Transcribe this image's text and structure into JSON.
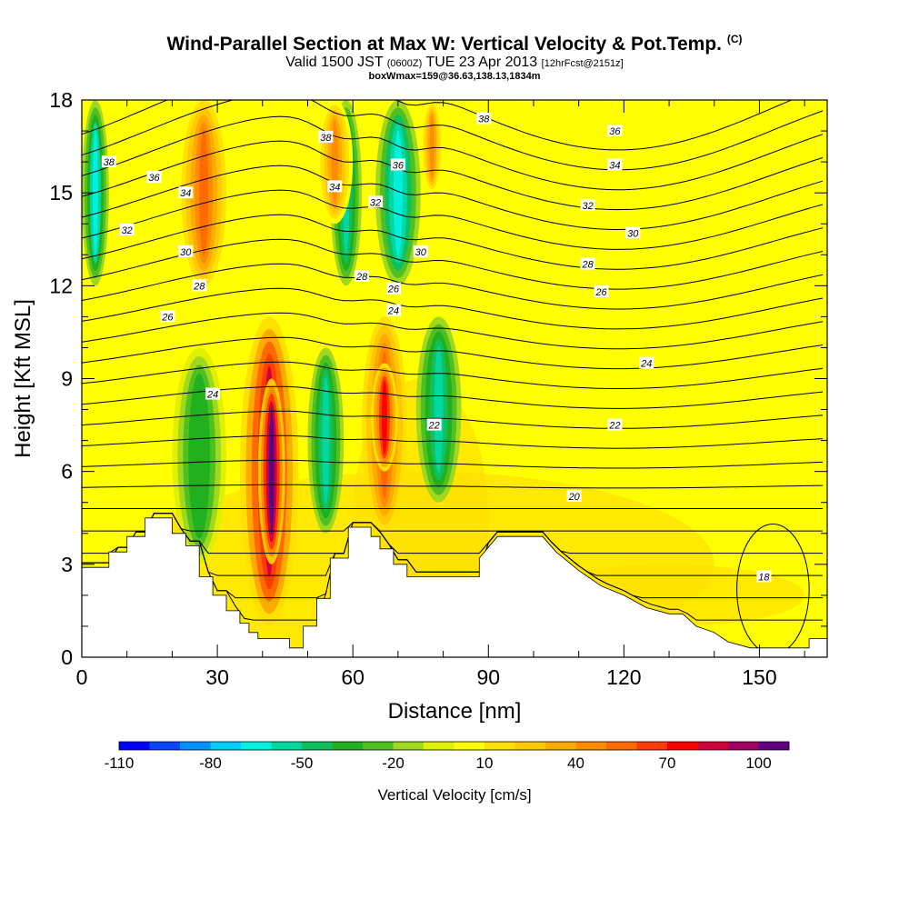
{
  "header": {
    "title": "Wind-Parallel Section at Max W: Vertical Velocity & Pot.Temp.",
    "title_mark": "(C)",
    "valid_prefix": "Valid 1500 JST",
    "valid_utc": "(0600Z)",
    "valid_date": "TUE 23 Apr 2013",
    "forecast": "[12hrFcst@2151z]",
    "box_info": "boxWmax=159@36.63,138.13,1834m"
  },
  "chart_data": {
    "type": "heatmap",
    "xlabel": "Distance [nm]",
    "ylabel": "Height [Kft MSL]",
    "xlim": [
      0,
      165
    ],
    "ylim": [
      0,
      18
    ],
    "xticks": [
      0,
      30,
      60,
      90,
      120,
      150
    ],
    "yticks": [
      0,
      3,
      6,
      9,
      12,
      15,
      18
    ],
    "colorbar": {
      "title": "Vertical Velocity [cm/s]",
      "tick_labels": [
        "-110",
        "-80",
        "-50",
        "-20",
        "10",
        "40",
        "70",
        "100"
      ],
      "levels": [
        -110,
        -100,
        -90,
        -80,
        -70,
        -60,
        -50,
        -40,
        -30,
        -20,
        -10,
        0,
        10,
        20,
        30,
        40,
        50,
        60,
        70,
        80,
        90,
        100
      ],
      "colors": [
        "#0000ff",
        "#0a46ff",
        "#0090ff",
        "#00ccff",
        "#00f0e0",
        "#00d8a0",
        "#10c060",
        "#20b020",
        "#50c020",
        "#a0d820",
        "#e0f000",
        "#ffff00",
        "#ffe000",
        "#ffc800",
        "#ffaa00",
        "#ff8c00",
        "#ff6a00",
        "#ff3c00",
        "#ff0000",
        "#d0003c",
        "#a00060",
        "#600080"
      ]
    },
    "terrain": [
      [
        0,
        2.9
      ],
      [
        6,
        2.9
      ],
      [
        6,
        3.4
      ],
      [
        10,
        3.4
      ],
      [
        10,
        3.9
      ],
      [
        14,
        3.9
      ],
      [
        14,
        4.5
      ],
      [
        20,
        4.5
      ],
      [
        20,
        4.0
      ],
      [
        23,
        4.0
      ],
      [
        23,
        3.6
      ],
      [
        26,
        3.6
      ],
      [
        26,
        2.6
      ],
      [
        29,
        2.6
      ],
      [
        29,
        2.0
      ],
      [
        32,
        2.0
      ],
      [
        32,
        1.5
      ],
      [
        35,
        1.5
      ],
      [
        35,
        1.1
      ],
      [
        37,
        1.1
      ],
      [
        37,
        0.8
      ],
      [
        39,
        0.8
      ],
      [
        39,
        0.6
      ],
      [
        46,
        0.6
      ],
      [
        46,
        0.3
      ],
      [
        49,
        0.3
      ],
      [
        49,
        1.0
      ],
      [
        52,
        1.0
      ],
      [
        52,
        1.9
      ],
      [
        55,
        1.9
      ],
      [
        55,
        3.2
      ],
      [
        59,
        3.2
      ],
      [
        59,
        4.2
      ],
      [
        64,
        4.2
      ],
      [
        64,
        3.9
      ],
      [
        66,
        3.9
      ],
      [
        66,
        3.5
      ],
      [
        69,
        3.5
      ],
      [
        69,
        3.0
      ],
      [
        72,
        3.0
      ],
      [
        72,
        2.6
      ],
      [
        80,
        2.6
      ],
      [
        80,
        2.6
      ],
      [
        88,
        2.6
      ],
      [
        88,
        3.2
      ],
      [
        92,
        3.9
      ],
      [
        102,
        3.9
      ],
      [
        105,
        3.4
      ],
      [
        110,
        2.8
      ],
      [
        115,
        2.3
      ],
      [
        120,
        2.0
      ],
      [
        125,
        1.6
      ],
      [
        130,
        1.4
      ],
      [
        133,
        1.4
      ],
      [
        136,
        1.0
      ],
      [
        140,
        0.8
      ],
      [
        143,
        0.5
      ],
      [
        148,
        0.3
      ],
      [
        161,
        0.3
      ],
      [
        161,
        0.6
      ],
      [
        165,
        0.6
      ]
    ],
    "vertical_velocity_cells": [
      {
        "x": [
          35,
          48
        ],
        "y": [
          1,
          11
        ],
        "w": 85
      },
      {
        "x": [
          39,
          45
        ],
        "y": [
          3,
          9
        ],
        "w": 100
      },
      {
        "x": [
          62,
          72
        ],
        "y": [
          4,
          11
        ],
        "w": 55
      },
      {
        "x": [
          64,
          70
        ],
        "y": [
          6,
          9.5
        ],
        "w": 75
      },
      {
        "x": [
          50,
          58
        ],
        "y": [
          4,
          10
        ],
        "w": -60
      },
      {
        "x": [
          74,
          84
        ],
        "y": [
          5,
          11
        ],
        "w": -60
      },
      {
        "x": [
          20,
          32
        ],
        "y": [
          3,
          10
        ],
        "w": -40
      },
      {
        "x": [
          0,
          6
        ],
        "y": [
          12,
          18
        ],
        "w": -65
      },
      {
        "x": [
          55,
          62
        ],
        "y": [
          12,
          18
        ],
        "w": -55
      },
      {
        "x": [
          65,
          75
        ],
        "y": [
          12,
          18
        ],
        "w": -70
      },
      {
        "x": [
          22,
          32
        ],
        "y": [
          12,
          18
        ],
        "w": 55
      },
      {
        "x": [
          52,
          60
        ],
        "y": [
          14,
          18
        ],
        "w": 45
      },
      {
        "x": [
          75,
          80
        ],
        "y": [
          15,
          18
        ],
        "w": 45
      }
    ],
    "theta_contour_labels": [
      {
        "value": "38",
        "x": 6,
        "y": 16
      },
      {
        "value": "36",
        "x": 16,
        "y": 15.5
      },
      {
        "value": "34",
        "x": 23,
        "y": 15
      },
      {
        "value": "32",
        "x": 10,
        "y": 13.8
      },
      {
        "value": "30",
        "x": 23,
        "y": 13.1
      },
      {
        "value": "28",
        "x": 26,
        "y": 12
      },
      {
        "value": "26",
        "x": 19,
        "y": 11
      },
      {
        "value": "24",
        "x": 29,
        "y": 8.5
      },
      {
        "value": "38",
        "x": 54,
        "y": 16.8
      },
      {
        "value": "36",
        "x": 70,
        "y": 15.9
      },
      {
        "value": "34",
        "x": 56,
        "y": 15.2
      },
      {
        "value": "32",
        "x": 65,
        "y": 14.7
      },
      {
        "value": "30",
        "x": 75,
        "y": 13.1
      },
      {
        "value": "28",
        "x": 62,
        "y": 12.3
      },
      {
        "value": "26",
        "x": 69,
        "y": 11.9
      },
      {
        "value": "24",
        "x": 69,
        "y": 11.2
      },
      {
        "value": "22",
        "x": 78,
        "y": 7.5
      },
      {
        "value": "38",
        "x": 89,
        "y": 17.4
      },
      {
        "value": "36",
        "x": 118,
        "y": 17.0
      },
      {
        "value": "34",
        "x": 118,
        "y": 15.9
      },
      {
        "value": "32",
        "x": 112,
        "y": 14.6
      },
      {
        "value": "30",
        "x": 122,
        "y": 13.7
      },
      {
        "value": "28",
        "x": 112,
        "y": 12.7
      },
      {
        "value": "26",
        "x": 115,
        "y": 11.8
      },
      {
        "value": "24",
        "x": 125,
        "y": 9.5
      },
      {
        "value": "22",
        "x": 118,
        "y": 7.5
      },
      {
        "value": "20",
        "x": 109,
        "y": 5.2
      },
      {
        "value": "18",
        "x": 151,
        "y": 2.6
      }
    ]
  }
}
